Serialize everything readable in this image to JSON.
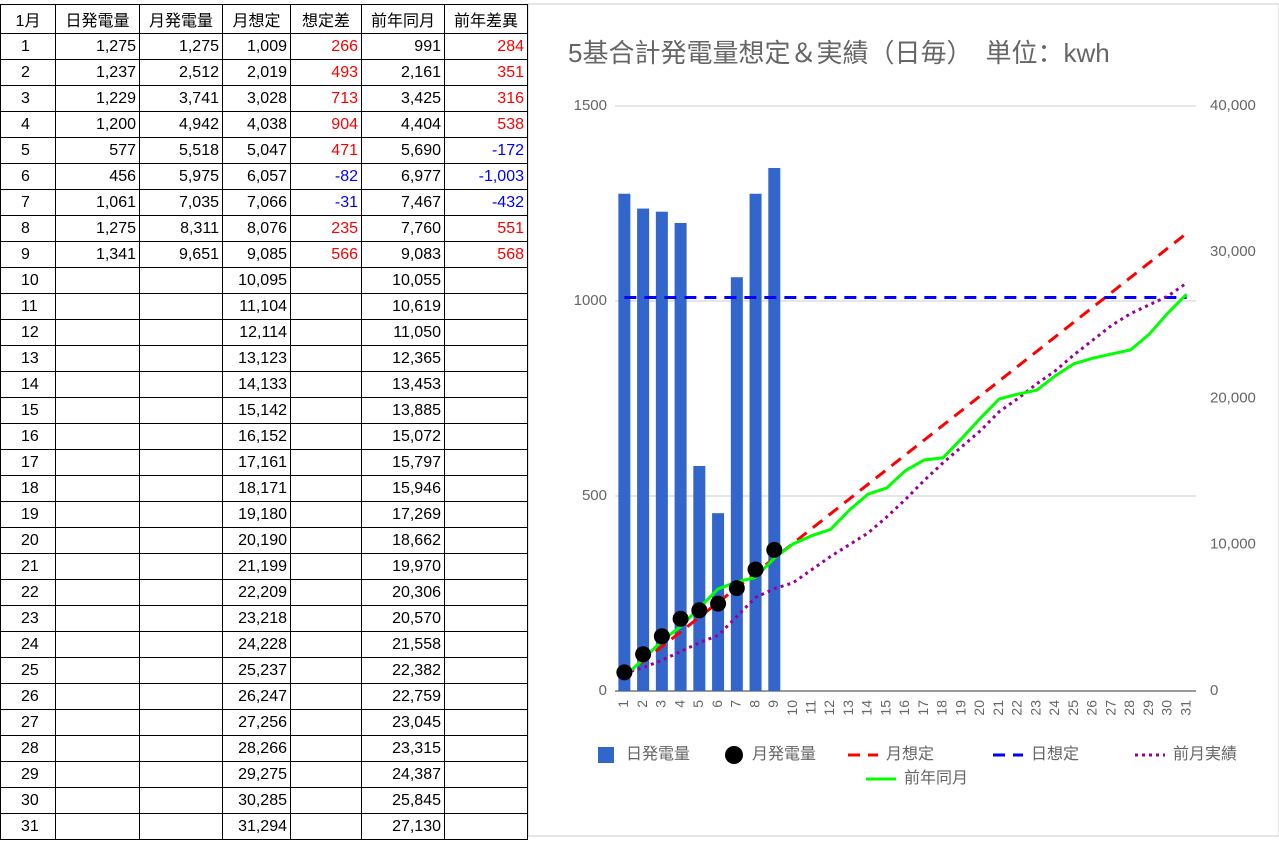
{
  "table": {
    "header": [
      "1月",
      "日発電量",
      "月発電量",
      "月想定",
      "想定差",
      "前年同月",
      "前年差異"
    ],
    "positive_color": "#ff0000",
    "negative_color": "#0000ff",
    "colored_columns": [
      4,
      6
    ],
    "rows": [
      [
        "1",
        "1,275",
        "1,275",
        "1,009",
        "266",
        "991",
        "284"
      ],
      [
        "2",
        "1,237",
        "2,512",
        "2,019",
        "493",
        "2,161",
        "351"
      ],
      [
        "3",
        "1,229",
        "3,741",
        "3,028",
        "713",
        "3,425",
        "316"
      ],
      [
        "4",
        "1,200",
        "4,942",
        "4,038",
        "904",
        "4,404",
        "538"
      ],
      [
        "5",
        "577",
        "5,518",
        "5,047",
        "471",
        "5,690",
        "-172"
      ],
      [
        "6",
        "456",
        "5,975",
        "6,057",
        "-82",
        "6,977",
        "-1,003"
      ],
      [
        "7",
        "1,061",
        "7,035",
        "7,066",
        "-31",
        "7,467",
        "-432"
      ],
      [
        "8",
        "1,275",
        "8,311",
        "8,076",
        "235",
        "7,760",
        "551"
      ],
      [
        "9",
        "1,341",
        "9,651",
        "9,085",
        "566",
        "9,083",
        "568"
      ],
      [
        "10",
        null,
        null,
        "10,095",
        null,
        "10,055",
        null
      ],
      [
        "11",
        null,
        null,
        "11,104",
        null,
        "10,619",
        null
      ],
      [
        "12",
        null,
        null,
        "12,114",
        null,
        "11,050",
        null
      ],
      [
        "13",
        null,
        null,
        "13,123",
        null,
        "12,365",
        null
      ],
      [
        "14",
        null,
        null,
        "14,133",
        null,
        "13,453",
        null
      ],
      [
        "15",
        null,
        null,
        "15,142",
        null,
        "13,885",
        null
      ],
      [
        "16",
        null,
        null,
        "16,152",
        null,
        "15,072",
        null
      ],
      [
        "17",
        null,
        null,
        "17,161",
        null,
        "15,797",
        null
      ],
      [
        "18",
        null,
        null,
        "18,171",
        null,
        "15,946",
        null
      ],
      [
        "19",
        null,
        null,
        "19,180",
        null,
        "17,269",
        null
      ],
      [
        "20",
        null,
        null,
        "20,190",
        null,
        "18,662",
        null
      ],
      [
        "21",
        null,
        null,
        "21,199",
        null,
        "19,970",
        null
      ],
      [
        "22",
        null,
        null,
        "22,209",
        null,
        "20,306",
        null
      ],
      [
        "23",
        null,
        null,
        "23,218",
        null,
        "20,570",
        null
      ],
      [
        "24",
        null,
        null,
        "24,228",
        null,
        "21,558",
        null
      ],
      [
        "25",
        null,
        null,
        "25,237",
        null,
        "22,382",
        null
      ],
      [
        "26",
        null,
        null,
        "26,247",
        null,
        "22,759",
        null
      ],
      [
        "27",
        null,
        null,
        "27,256",
        null,
        "23,045",
        null
      ],
      [
        "28",
        null,
        null,
        "28,266",
        null,
        "23,315",
        null
      ],
      [
        "29",
        null,
        null,
        "29,275",
        null,
        "24,387",
        null
      ],
      [
        "30",
        null,
        null,
        "30,285",
        null,
        "25,845",
        null
      ],
      [
        "31",
        null,
        null,
        "31,294",
        null,
        "27,130",
        null
      ]
    ]
  },
  "chart_data": {
    "type": "combo",
    "title": "5基合計発電量想定＆実績（日毎）　単位：kwh",
    "categories": [
      "1",
      "2",
      "3",
      "4",
      "5",
      "6",
      "7",
      "8",
      "9",
      "10",
      "11",
      "12",
      "13",
      "14",
      "15",
      "16",
      "17",
      "18",
      "19",
      "20",
      "21",
      "22",
      "23",
      "24",
      "25",
      "26",
      "27",
      "28",
      "29",
      "30",
      "31"
    ],
    "ylim": [
      0,
      1500
    ],
    "yticks": [
      0,
      500,
      1000,
      1500
    ],
    "y2lim": [
      0,
      40000
    ],
    "y2ticks": [
      0,
      {
        "value": 10000,
        "label": "10,000"
      },
      {
        "value": 20000,
        "label": "20,000"
      },
      {
        "value": 30000,
        "label": "30,000"
      },
      {
        "value": 40000,
        "label": "40,000"
      }
    ],
    "grid": true,
    "legend": "bottom",
    "series": [
      {
        "name": "日発電量",
        "type": "bar",
        "color": "#3366cc",
        "axis": "y",
        "values": [
          1275,
          1237,
          1229,
          1200,
          577,
          456,
          1061,
          1275,
          1341,
          null,
          null,
          null,
          null,
          null,
          null,
          null,
          null,
          null,
          null,
          null,
          null,
          null,
          null,
          null,
          null,
          null,
          null,
          null,
          null,
          null,
          null
        ]
      },
      {
        "name": "月発電量",
        "type": "dot",
        "color": "#000000",
        "axis": "y2",
        "values": [
          1275,
          2512,
          3741,
          4942,
          5518,
          5975,
          7035,
          8311,
          9651,
          null,
          null,
          null,
          null,
          null,
          null,
          null,
          null,
          null,
          null,
          null,
          null,
          null,
          null,
          null,
          null,
          null,
          null,
          null,
          null,
          null,
          null
        ]
      },
      {
        "name": "月想定",
        "type": "line",
        "dash": "dashed",
        "color": "#ff0000",
        "axis": "y2",
        "values": [
          1009,
          2019,
          3028,
          4038,
          5047,
          6057,
          7066,
          8076,
          9085,
          10095,
          11104,
          12114,
          13123,
          14133,
          15142,
          16152,
          17161,
          18171,
          19180,
          20190,
          21199,
          22209,
          23218,
          24228,
          25237,
          26247,
          27256,
          28266,
          29275,
          30285,
          31294
        ]
      },
      {
        "name": "日想定",
        "type": "line",
        "dash": "dashed",
        "color": "#0000ff",
        "axis": "y",
        "values": [
          1009,
          1009,
          1009,
          1009,
          1009,
          1009,
          1009,
          1009,
          1009,
          1009,
          1009,
          1009,
          1009,
          1009,
          1009,
          1009,
          1009,
          1009,
          1009,
          1009,
          1009,
          1009,
          1009,
          1009,
          1009,
          1009,
          1009,
          1009,
          1009,
          1009,
          1009
        ]
      },
      {
        "name": "前月実績",
        "type": "line",
        "dash": "dotted",
        "color": "#990099",
        "axis": "y2",
        "values": [
          1200,
          1600,
          2100,
          2700,
          3300,
          3800,
          5100,
          6400,
          7000,
          7400,
          8300,
          9200,
          10000,
          10800,
          11900,
          13100,
          14400,
          15600,
          16700,
          17800,
          19100,
          20000,
          21000,
          21900,
          23000,
          24000,
          25000,
          25800,
          26400,
          27000,
          27900
        ]
      },
      {
        "name": "前年同月",
        "type": "line",
        "dash": "solid",
        "color": "#00ff00",
        "axis": "y2",
        "values": [
          991,
          2161,
          3425,
          4404,
          5690,
          6977,
          7467,
          7760,
          9083,
          10055,
          10619,
          11050,
          12365,
          13453,
          13885,
          15072,
          15797,
          15946,
          17269,
          18662,
          19970,
          20306,
          20570,
          21558,
          22382,
          22759,
          23045,
          23315,
          24387,
          25845,
          27130
        ]
      }
    ]
  }
}
